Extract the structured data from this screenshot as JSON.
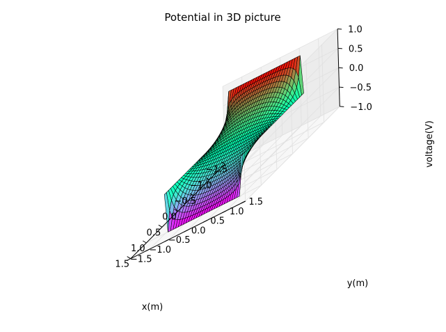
{
  "chart_data": {
    "type": "surface3d",
    "title": "Potential in 3D picture",
    "xlabel": "x(m)",
    "ylabel": "y(m)",
    "zlabel": "voltage(V)",
    "xlim": [
      -1.5,
      1.5
    ],
    "ylim": [
      -1.5,
      1.5
    ],
    "zlim": [
      -1.0,
      1.0
    ],
    "xticks": [
      "−1.5",
      "−1.0",
      "−0.5",
      "0.0",
      "0.5",
      "1.0",
      "1.5"
    ],
    "yticks": [
      "−1.5",
      "−1.0",
      "−0.5",
      "0.0",
      "0.5",
      "1.0",
      "1.5"
    ],
    "zticks": [
      "−1.0",
      "−0.5",
      "0.0",
      "0.5",
      "1.0"
    ],
    "surface": {
      "x_range": [
        -1.0,
        1.0
      ],
      "y_range": [
        -1.0,
        1.0
      ],
      "grid": 30,
      "boundary": {
        "x_eq_-1": 1.0,
        "x_eq_1": -1.0,
        "y_eq_-1": 0.0,
        "y_eq_1": 0.0
      },
      "colormap": "rainbow",
      "edgecolor": "#000000"
    },
    "grid": true
  }
}
